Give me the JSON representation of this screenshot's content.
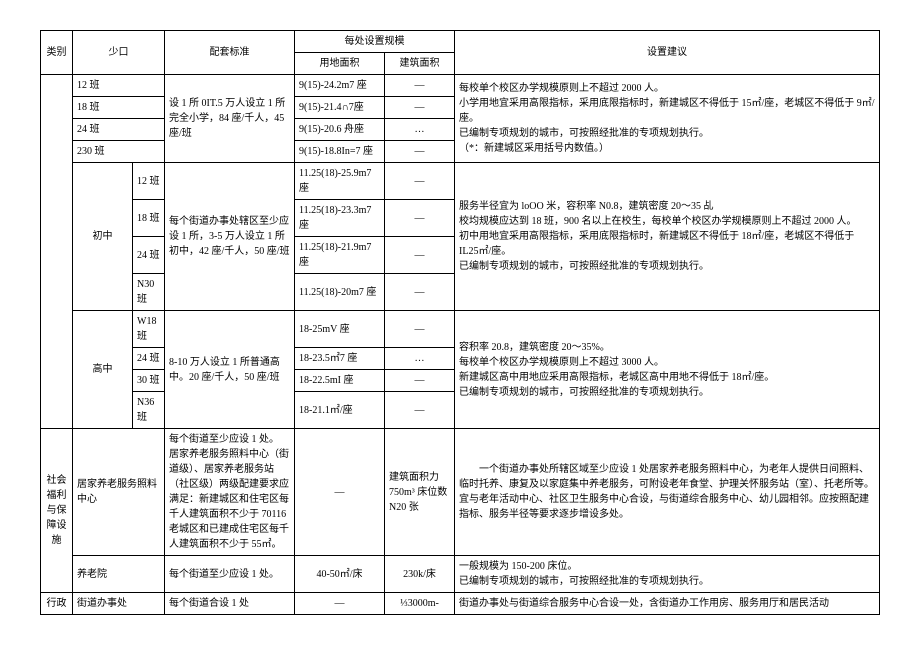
{
  "header": {
    "category": "类别",
    "shaokou": "少口",
    "standard": "配套标准",
    "scale_group": "每处设置规模",
    "land_area": "用地面积",
    "build_area": "建筑面积",
    "suggestion": "设置建议"
  },
  "primary": {
    "std": "设 1 所 0IT.5 万人设立 1 所完全小学，84 座/千人，45 座/班",
    "r1": {
      "c": "12 班",
      "land": "9(15)-24.2m7 座",
      "build": "—"
    },
    "r2": {
      "c": "18 班",
      "land": "9(15)-21.4∩7座",
      "build": "—"
    },
    "r3": {
      "c": "24 班",
      "land": "9(15)-20.6 舟座",
      "build": "…"
    },
    "r4": {
      "c": "230 班",
      "land": "9(15)-18.8In=7 座",
      "build": "—"
    },
    "sugg": "每校单个校区办学规模原则上不超过 2000 人。\n小学用地宜采用高限指标，采用底限指标时，新建城区不得低于 15㎡/座，老城区不得低于 9㎡/座。\n已编制专项规划的城市，可按照经批准的专项规划执行。\n（*：新建城区采用括号内数值。）"
  },
  "junior": {
    "label": "初中",
    "std": "每个街道办事处辖区至少应设 1 所，3-5 万人设立 1 所初中，42 座/千人，50 座/班",
    "r1": {
      "c": "12 班",
      "land": "11.25(18)-25.9m7 座",
      "build": "—"
    },
    "r2": {
      "c": "18 班",
      "land": "11.25(18)-23.3m7 座",
      "build": "—"
    },
    "r3": {
      "c": "24 班",
      "land": "11.25(18)-21.9m7 座",
      "build": "—"
    },
    "r4": {
      "c": "N30 班",
      "land": "11.25(18)-20m7 座",
      "build": "—"
    },
    "sugg": "服务半径宜为 loOO 米，容积率 N0.8，建筑密度 20～35 乩\n校均规模应达到 18 班，900 名以上在校生，每校单个校区办学规模原则上不超过 2000 人。\n初中用地宜采用高限指标，采用底限指标时，新建城区不得低于 18㎡/座，老城区不得低于 IL25㎡/座。\n已编制专项规划的城市，可按照经批准的专项规划执行。"
  },
  "senior": {
    "label": "高中",
    "std": "8-10 万人设立 1 所普通高中。20 座/千人，50 座/班",
    "r1": {
      "c": "W18 班",
      "land": "18-25mV 座",
      "build": "—"
    },
    "r2": {
      "c": "24 班",
      "land": "18-23.5㎡7 座",
      "build": "…"
    },
    "r3": {
      "c": "30 班",
      "land": "18-22.5mI 座",
      "build": "—"
    },
    "r4": {
      "c": "N36 班",
      "land": "18-21.1㎡/座",
      "build": "—"
    },
    "sugg": "容积率 20.8，建筑密度 20～35%。\n每校单个校区办学规模原则上不超过 3000 人。\n新建城区高中用地应采用高限指标，老城区高中用地不得低于 18㎡/座。\n已编制专项规划的城市，可按照经批准的专项规划执行。"
  },
  "welfare": {
    "cat": "社会福利与保障设施",
    "r1": {
      "name": "居家养老服务照料中心",
      "std": "每个街道至少应设 1 处。\n居家养老服务照料中心（街道级）、居家养老服务站（社区级）两级配建要求应满足：新建城区和住宅区每千人建筑面积不少于 70116 老城区和已建成住宅区每千人建筑面积不少于 55㎡。",
      "land": "—",
      "build": "建筑面积力 750m³ 床位数 N20 张",
      "sugg": "　　一个街道办事处所辖区域至少应设 1 处居家养老服务照料中心，为老年人提供日间照料、临时托养、康复及以家庭集中养老服务，可附设老年食堂、护理关怀服务站（室）、托老所等。\n宜与老年活动中心、社区卫生服务中心合设，与街道综合服务中心、幼儿园相邻。应按照配建指标、服务半径等要求逐步增设多处。"
    },
    "r2": {
      "name": "养老院",
      "std": "每个街道至少应设 1 处。",
      "land": "40-50㎡/床",
      "build": "230k/床",
      "sugg": "一般规模为 150-200 床位。\n已编制专项规划的城市，可按照经批准的专项规划执行。"
    }
  },
  "admin": {
    "cat": "行政",
    "name": "街道办事处",
    "std": "每个街道合设 1 处",
    "land": "—",
    "build": "⅓3000m-",
    "sugg": "街道办事处与街道综合服务中心合设一处，含街道办工作用房、服务用厅和居民活动"
  }
}
